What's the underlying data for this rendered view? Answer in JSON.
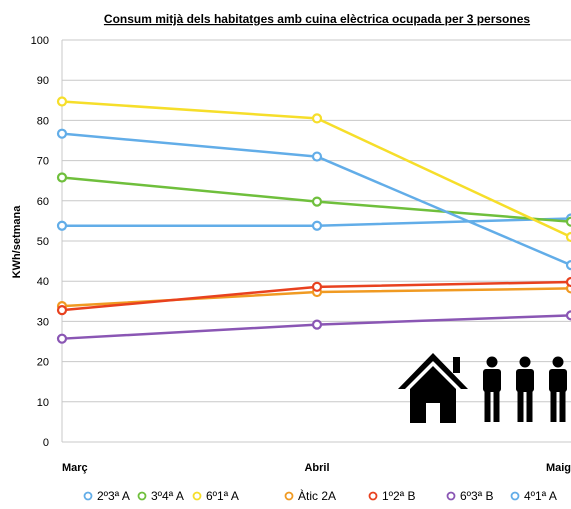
{
  "chart_data": {
    "type": "line",
    "title": "Consum mitjà dels habitatges amb cuina elèctrica ocupada per 3 persones",
    "xlabel": "",
    "ylabel": "KWh/setmana",
    "categories": [
      "Març",
      "Abril",
      "Maig"
    ],
    "ylim": [
      0,
      100
    ],
    "yticks": [
      "0",
      "10",
      "20",
      "30",
      "40",
      "50",
      "60",
      "70",
      "80",
      "90",
      "100"
    ],
    "grid": true,
    "legend_position": "bottom",
    "series": [
      {
        "name": "2º3ª A",
        "color": "#62ade8",
        "values": [
          53.8,
          53.8,
          55.6
        ]
      },
      {
        "name": "3º4ª A",
        "color": "#6fbf3c",
        "values": [
          65.8,
          59.8,
          54.8
        ]
      },
      {
        "name": "6º1ª A",
        "color": "#f6de2a",
        "values": [
          84.7,
          80.5,
          51.0
        ]
      },
      {
        "name": "Àtic 2A",
        "color": "#f09a22",
        "values": [
          33.8,
          37.3,
          38.2
        ]
      },
      {
        "name": "1º2ª B",
        "color": "#e8411f",
        "values": [
          32.8,
          38.6,
          39.8
        ]
      },
      {
        "name": "6º3ª B",
        "color": "#8a56b4",
        "values": [
          25.7,
          29.2,
          31.5
        ]
      },
      {
        "name": "4º1ª A",
        "color": "#62ade8",
        "values": [
          76.7,
          71.0,
          44.0
        ]
      }
    ]
  },
  "icons": {
    "house": "house-icon",
    "people": "family-of-three-icon"
  }
}
